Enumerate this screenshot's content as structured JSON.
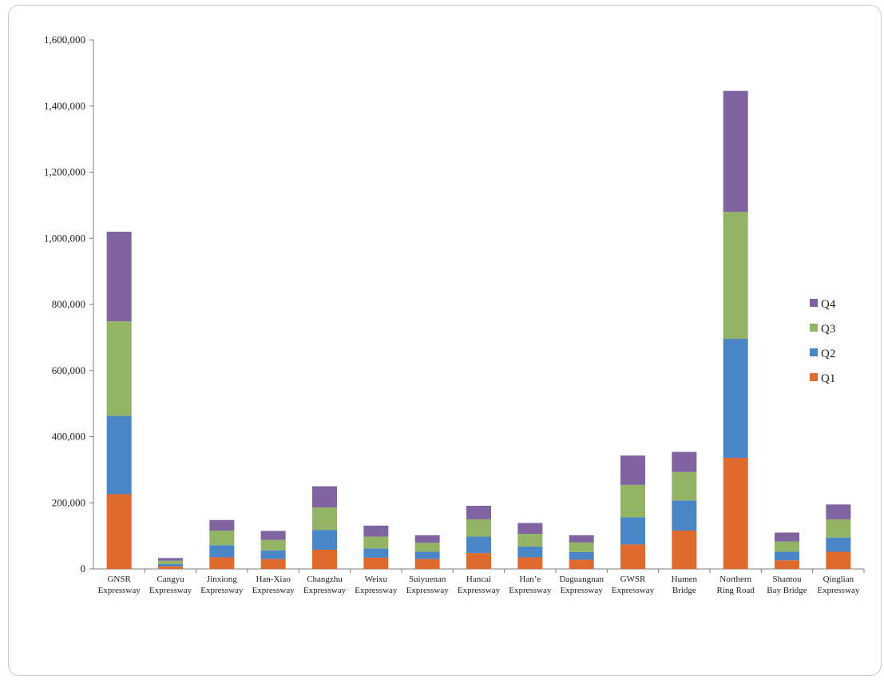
{
  "chart_data": {
    "type": "bar",
    "stacked": true,
    "title": "",
    "xlabel": "",
    "ylabel": "",
    "ylim": [
      0,
      1600000
    ],
    "yticks": [
      0,
      200000,
      400000,
      600000,
      800000,
      1000000,
      1200000,
      1400000,
      1600000
    ],
    "ytick_labels": [
      "0",
      "200,000",
      "400,000",
      "600,000",
      "800,000",
      "1,000,000",
      "1,200,000",
      "1,400,000",
      "1,600,000"
    ],
    "grid": false,
    "legend_position": "right",
    "categories": [
      [
        "GNSR",
        "Expressway"
      ],
      [
        "Cangyu",
        "Expressway"
      ],
      [
        "Jinxiong",
        "Expressway"
      ],
      [
        "Han-Xiao",
        "Expressway"
      ],
      [
        "Changzhu",
        "Expressway"
      ],
      [
        "Weixu",
        "Expressway"
      ],
      [
        "Suiyuenan",
        "Expressway"
      ],
      [
        "Hancai",
        "Expressway"
      ],
      [
        "Han’e",
        "Expressway"
      ],
      [
        "Daguangnan",
        "Expressway"
      ],
      [
        "GWSR",
        "Expressway"
      ],
      [
        "Humen",
        "Bridge"
      ],
      [
        "Northern",
        "Ring Road"
      ],
      [
        "Shantou",
        "Bay Bridge"
      ],
      [
        "Qinglian",
        "Expressway"
      ]
    ],
    "series": [
      {
        "name": "Q1",
        "color": "#E0692E",
        "values": [
          226000,
          8000,
          35000,
          30000,
          58000,
          34000,
          30000,
          48000,
          35000,
          28000,
          74000,
          116000,
          336000,
          26000,
          52000
        ]
      },
      {
        "name": "Q2",
        "color": "#4A85C7",
        "values": [
          237000,
          7000,
          37000,
          26000,
          60000,
          28000,
          22000,
          50000,
          33000,
          23000,
          82000,
          91000,
          360000,
          26000,
          43000
        ]
      },
      {
        "name": "Q3",
        "color": "#93B465",
        "values": [
          286000,
          10000,
          44000,
          32000,
          68000,
          36000,
          27000,
          52000,
          38000,
          29000,
          98000,
          86000,
          384000,
          31000,
          55000
        ]
      },
      {
        "name": "Q4",
        "color": "#8064A2",
        "values": [
          271000,
          8000,
          32000,
          27000,
          64000,
          33000,
          23000,
          41000,
          33000,
          22000,
          89000,
          61000,
          366000,
          27000,
          45000
        ]
      }
    ]
  }
}
